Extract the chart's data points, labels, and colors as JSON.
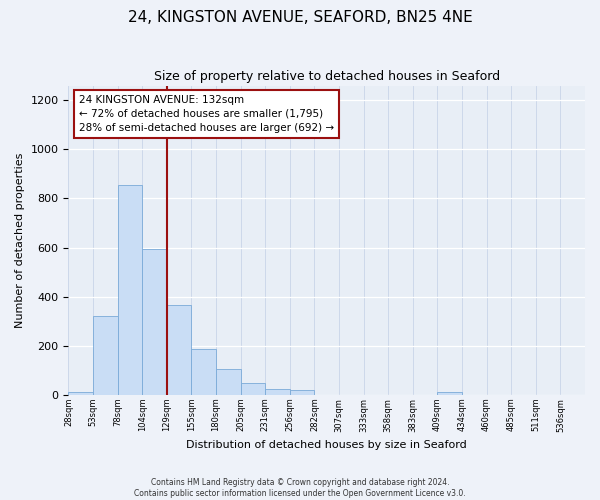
{
  "title": "24, KINGSTON AVENUE, SEAFORD, BN25 4NE",
  "subtitle": "Size of property relative to detached houses in Seaford",
  "xlabel": "Distribution of detached houses by size in Seaford",
  "ylabel": "Number of detached properties",
  "bar_values": [
    10,
    320,
    855,
    595,
    365,
    185,
    105,
    47,
    22,
    18,
    0,
    0,
    0,
    0,
    0,
    12,
    0,
    0,
    0,
    0,
    0
  ],
  "bar_labels": [
    "28sqm",
    "53sqm",
    "78sqm",
    "104sqm",
    "129sqm",
    "155sqm",
    "180sqm",
    "205sqm",
    "231sqm",
    "256sqm",
    "282sqm",
    "307sqm",
    "333sqm",
    "358sqm",
    "383sqm",
    "409sqm",
    "434sqm",
    "460sqm",
    "485sqm",
    "511sqm",
    "536sqm"
  ],
  "bar_color": "#c9ddf5",
  "bar_edge_color": "#7aaad8",
  "vline_x_index": 4,
  "vline_color": "#9b1010",
  "annotation_line1": "24 KINGSTON AVENUE: 132sqm",
  "annotation_line2": "← 72% of detached houses are smaller (1,795)",
  "annotation_line3": "28% of semi-detached houses are larger (692) →",
  "annotation_box_edge": "#9b1010",
  "ylim": [
    0,
    1260
  ],
  "yticks": [
    0,
    200,
    400,
    600,
    800,
    1000,
    1200
  ],
  "footer_line1": "Contains HM Land Registry data © Crown copyright and database right 2024.",
  "footer_line2": "Contains public sector information licensed under the Open Government Licence v3.0.",
  "bg_color": "#eef2f9",
  "plot_bg_color": "#e8eef6"
}
